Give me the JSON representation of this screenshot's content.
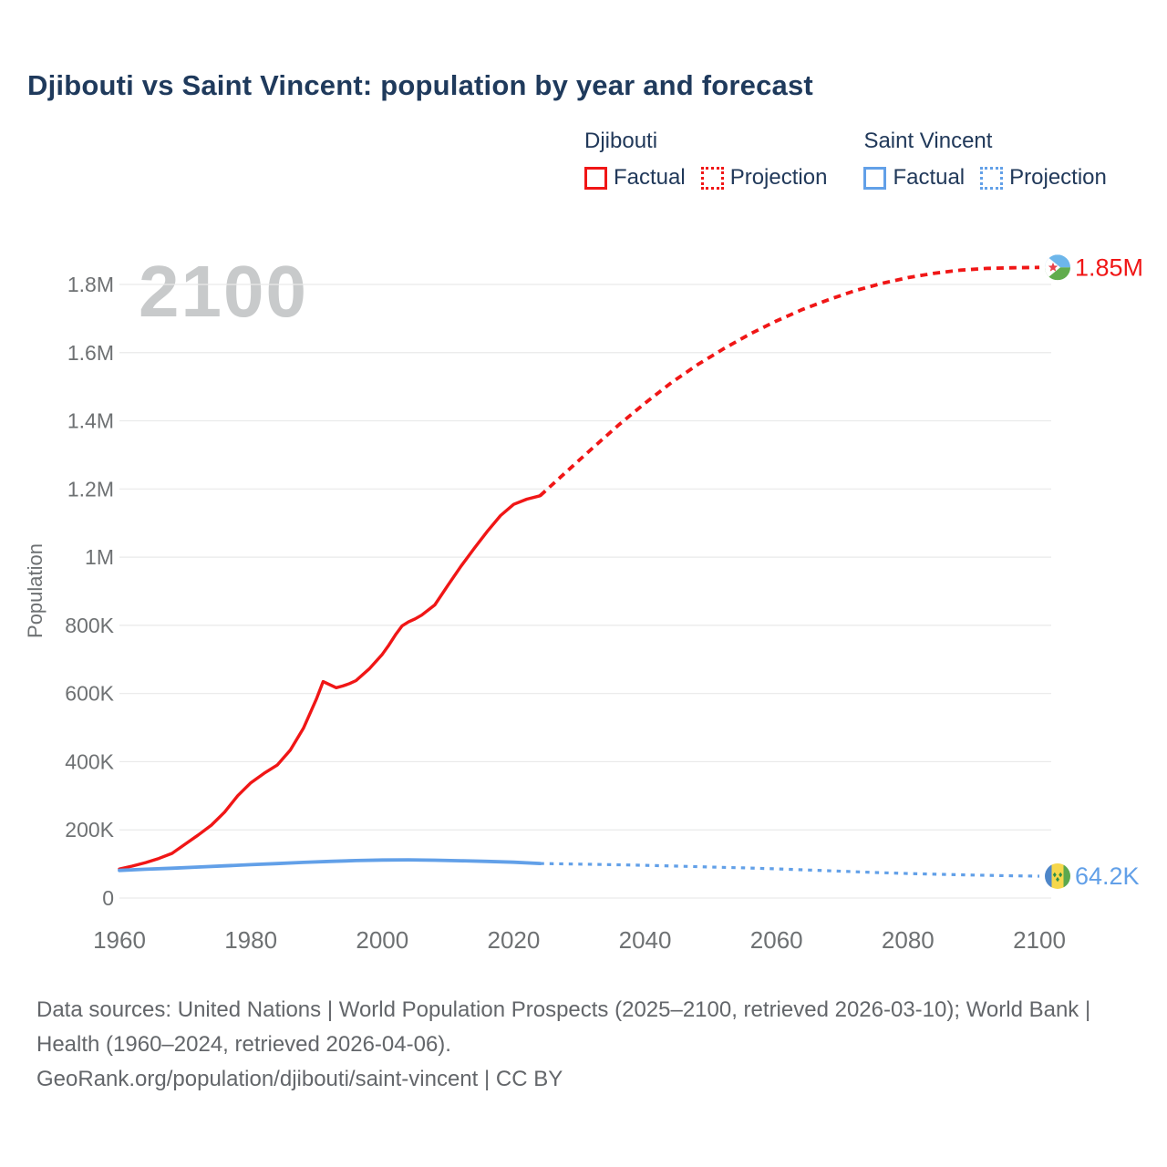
{
  "title": "Djibouti vs Saint Vincent: population by year and forecast",
  "watermark": "2100",
  "colors": {
    "red": "#f01616",
    "blue": "#62a0e8",
    "navy": "#21395a",
    "axis": "#6e7173",
    "grid": "#e9eaea",
    "watermark": "#c8cacb",
    "footer": "#63666a"
  },
  "legend": {
    "groups": [
      {
        "name": "Djibouti",
        "color": "#f01616",
        "items": [
          {
            "label": "Factual",
            "line": "solid"
          },
          {
            "label": "Projection",
            "line": "dotted"
          }
        ]
      },
      {
        "name": "Saint Vincent",
        "color": "#62a0e8",
        "items": [
          {
            "label": "Factual",
            "line": "solid"
          },
          {
            "label": "Projection",
            "line": "dotted"
          }
        ]
      }
    ]
  },
  "chart_data": {
    "type": "line",
    "title": "Djibouti vs Saint Vincent: population by year and forecast",
    "xlabel": "",
    "ylabel": "Population",
    "xlim": [
      1960,
      2100
    ],
    "ylim": [
      0,
      1900000
    ],
    "grid": "horizontal",
    "legend_position": "top-right",
    "x_ticks": [
      {
        "value": 1960,
        "label": "1960"
      },
      {
        "value": 1980,
        "label": "1980"
      },
      {
        "value": 2000,
        "label": "2000"
      },
      {
        "value": 2020,
        "label": "2020"
      },
      {
        "value": 2040,
        "label": "2040"
      },
      {
        "value": 2060,
        "label": "2060"
      },
      {
        "value": 2080,
        "label": "2080"
      },
      {
        "value": 2100,
        "label": "2100"
      }
    ],
    "y_ticks": [
      {
        "value": 0,
        "label": "0"
      },
      {
        "value": 200000,
        "label": "200K"
      },
      {
        "value": 400000,
        "label": "400K"
      },
      {
        "value": 600000,
        "label": "600K"
      },
      {
        "value": 800000,
        "label": "800K"
      },
      {
        "value": 1000000,
        "label": "1M"
      },
      {
        "value": 1200000,
        "label": "1.2M"
      },
      {
        "value": 1400000,
        "label": "1.4M"
      },
      {
        "value": 1600000,
        "label": "1.6M"
      },
      {
        "value": 1800000,
        "label": "1.8M"
      }
    ],
    "series": [
      {
        "id": "djibouti-factual",
        "name": "Djibouti Factual",
        "color": "#f01616",
        "style": "solid",
        "width": 3.4,
        "points": [
          [
            1960,
            85000
          ],
          [
            1962,
            94000
          ],
          [
            1964,
            104000
          ],
          [
            1966,
            116000
          ],
          [
            1968,
            131000
          ],
          [
            1970,
            158000
          ],
          [
            1972,
            185000
          ],
          [
            1974,
            214000
          ],
          [
            1976,
            252000
          ],
          [
            1978,
            300000
          ],
          [
            1980,
            338000
          ],
          [
            1982,
            366000
          ],
          [
            1984,
            390000
          ],
          [
            1986,
            434000
          ],
          [
            1988,
            498000
          ],
          [
            1990,
            585000
          ],
          [
            1991,
            635000
          ],
          [
            1992,
            626000
          ],
          [
            1993,
            617000
          ],
          [
            1994,
            622000
          ],
          [
            1995,
            629000
          ],
          [
            1996,
            638000
          ],
          [
            1998,
            672000
          ],
          [
            2000,
            715000
          ],
          [
            2001,
            742000
          ],
          [
            2002,
            772000
          ],
          [
            2003,
            798000
          ],
          [
            2004,
            810000
          ],
          [
            2005,
            819000
          ],
          [
            2006,
            830000
          ],
          [
            2008,
            860000
          ],
          [
            2010,
            918000
          ],
          [
            2012,
            974000
          ],
          [
            2014,
            1026000
          ],
          [
            2016,
            1076000
          ],
          [
            2018,
            1122000
          ],
          [
            2020,
            1155000
          ],
          [
            2022,
            1170000
          ],
          [
            2024,
            1180000
          ]
        ]
      },
      {
        "id": "djibouti-projection",
        "name": "Djibouti Projection",
        "color": "#f01616",
        "style": "dashed",
        "width": 3.8,
        "dash": "8 6",
        "points": [
          [
            2024,
            1180000
          ],
          [
            2028,
            1250000
          ],
          [
            2032,
            1320000
          ],
          [
            2036,
            1388000
          ],
          [
            2040,
            1452000
          ],
          [
            2044,
            1512000
          ],
          [
            2048,
            1565000
          ],
          [
            2052,
            1612000
          ],
          [
            2056,
            1655000
          ],
          [
            2060,
            1693000
          ],
          [
            2064,
            1727000
          ],
          [
            2068,
            1756000
          ],
          [
            2072,
            1782000
          ],
          [
            2076,
            1803000
          ],
          [
            2080,
            1820000
          ],
          [
            2084,
            1833000
          ],
          [
            2088,
            1842000
          ],
          [
            2092,
            1847000
          ],
          [
            2096,
            1849000
          ],
          [
            2100,
            1850000
          ]
        ]
      },
      {
        "id": "saint-vincent-factual",
        "name": "Saint Vincent Factual",
        "color": "#62a0e8",
        "style": "solid",
        "width": 3.8,
        "points": [
          [
            1960,
            81000
          ],
          [
            1964,
            84500
          ],
          [
            1968,
            87500
          ],
          [
            1972,
            91000
          ],
          [
            1976,
            94500
          ],
          [
            1980,
            98000
          ],
          [
            1984,
            101000
          ],
          [
            1988,
            104500
          ],
          [
            1992,
            107500
          ],
          [
            1996,
            110000
          ],
          [
            2000,
            111500
          ],
          [
            2004,
            112000
          ],
          [
            2008,
            111000
          ],
          [
            2012,
            109500
          ],
          [
            2016,
            107500
          ],
          [
            2020,
            105000
          ],
          [
            2024,
            101500
          ]
        ]
      },
      {
        "id": "saint-vincent-projection",
        "name": "Saint Vincent Projection",
        "color": "#62a0e8",
        "style": "dashed",
        "width": 3.2,
        "dash": "4.5 6",
        "points": [
          [
            2024,
            101500
          ],
          [
            2030,
            99500
          ],
          [
            2035,
            98000
          ],
          [
            2040,
            96000
          ],
          [
            2045,
            93500
          ],
          [
            2050,
            91000
          ],
          [
            2055,
            88500
          ],
          [
            2060,
            85500
          ],
          [
            2065,
            82000
          ],
          [
            2070,
            78500
          ],
          [
            2075,
            75000
          ],
          [
            2080,
            72000
          ],
          [
            2085,
            69500
          ],
          [
            2090,
            67300
          ],
          [
            2095,
            65500
          ],
          [
            2100,
            64200
          ]
        ]
      }
    ],
    "end_labels": [
      {
        "text": "1.85M",
        "color": "#f01616",
        "flag": "djibouti",
        "year": 2100,
        "value": 1850000
      },
      {
        "text": "64.2K",
        "color": "#62a0e8",
        "flag": "saint-vincent",
        "year": 2100,
        "value": 64200
      }
    ]
  },
  "footer": {
    "sources": "Data sources: United Nations | World Population Prospects (2025–2100, retrieved 2026-03-10); World Bank | Health (1960–2024, retrieved 2026-04-06).",
    "attribution": "GeoRank.org/population/djibouti/saint-vincent | CC BY"
  }
}
